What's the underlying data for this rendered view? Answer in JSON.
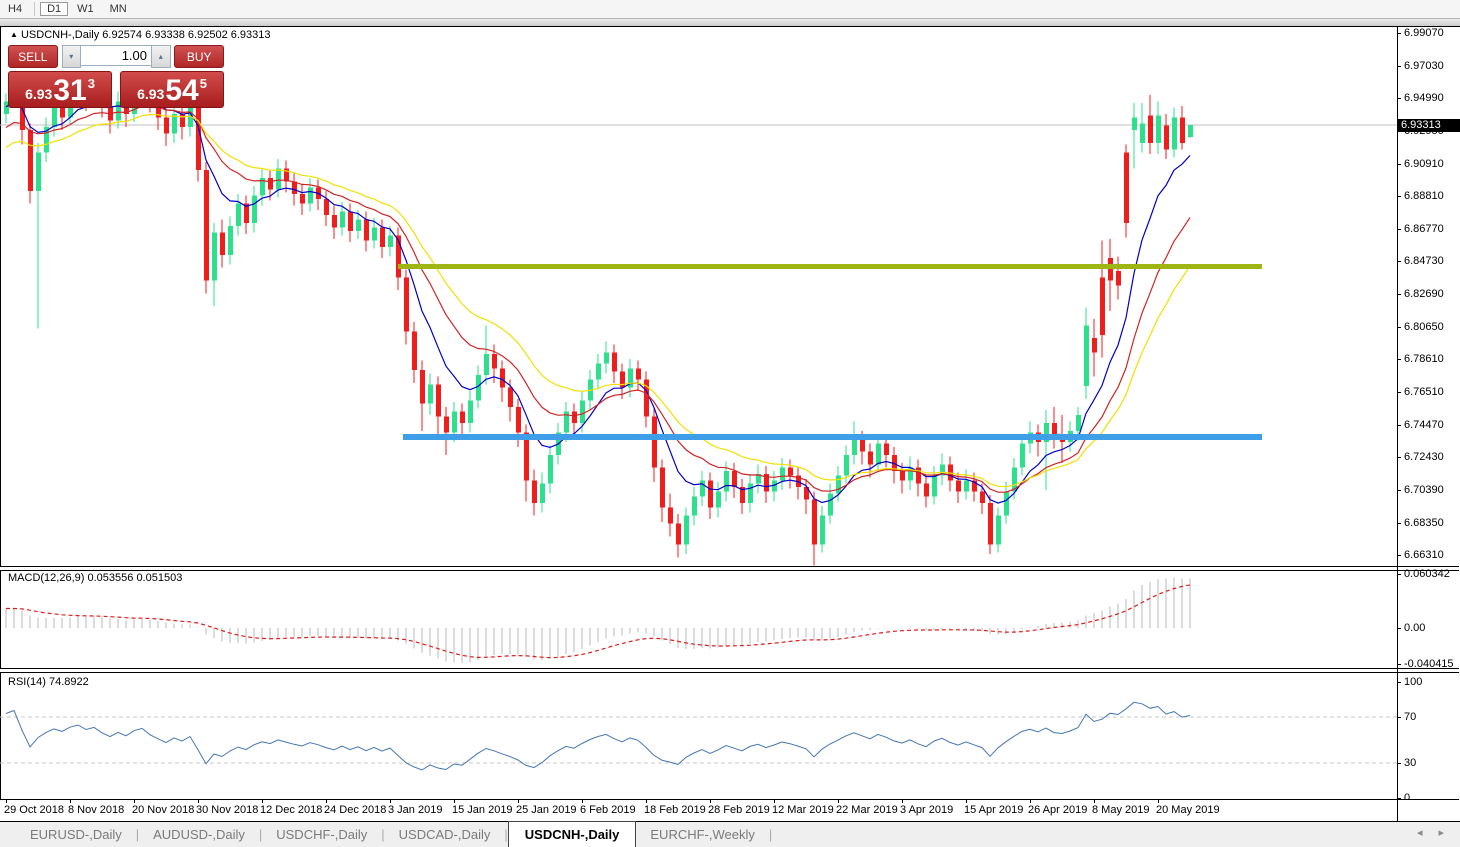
{
  "toolbar": {
    "timeframes": [
      "H4",
      "D1",
      "W1",
      "MN"
    ],
    "active_timeframe": "D1"
  },
  "chart_header": {
    "collapse_icon": "▲",
    "symbol_title": "USDCNH-,Daily",
    "ohlc_text": "6.92574 6.93338 6.92502 6.93313"
  },
  "trade_panel": {
    "sell_label": "SELL",
    "buy_label": "BUY",
    "volume_value": "1.00",
    "spin_down": "▾",
    "spin_up": "▴",
    "sell_price": {
      "prefix": "6.93",
      "big": "31",
      "sup": "3"
    },
    "buy_price": {
      "prefix": "6.93",
      "big": "54",
      "sup": "5"
    }
  },
  "price_axis": {
    "labels": [
      "6.99070",
      "6.97030",
      "6.94990",
      "6.92950",
      "6.90910",
      "6.88810",
      "6.86770",
      "6.84730",
      "6.82690",
      "6.80650",
      "6.78610",
      "6.76510",
      "6.74470",
      "6.72430",
      "6.70390",
      "6.68350",
      "6.66310"
    ],
    "current_price": "6.93313"
  },
  "macd_panel": {
    "label": "MACD(12,26,9)",
    "value_main": "0.053556",
    "value_signal": "0.051503",
    "axis_labels": [
      "0.060342",
      "0.00",
      "-0.040415"
    ]
  },
  "rsi_panel": {
    "label": "RSI(14)",
    "value": "74.8922",
    "axis_labels": [
      "100",
      "70",
      "30",
      "0"
    ]
  },
  "date_axis": {
    "labels": [
      "29 Oct 2018",
      "8 Nov 2018",
      "20 Nov 2018",
      "30 Nov 2018",
      "12 Dec 2018",
      "24 Dec 2018",
      "3 Jan 2019",
      "15 Jan 2019",
      "25 Jan 2019",
      "6 Feb 2019",
      "18 Feb 2019",
      "28 Feb 2019",
      "12 Mar 2019",
      "22 Mar 2019",
      "3 Apr 2019",
      "15 Apr 2019",
      "26 Apr 2019",
      "8 May 2019",
      "20 May 2019"
    ]
  },
  "tabs": {
    "items": [
      {
        "label": "EURUSD-,Daily",
        "active": false
      },
      {
        "label": "AUDUSD-,Daily",
        "active": false
      },
      {
        "label": "USDCHF-,Daily",
        "active": false
      },
      {
        "label": "USDCAD-,Daily",
        "active": false
      },
      {
        "label": "USDCNH-,Daily",
        "active": true
      },
      {
        "label": "EURCHF-,Weekly",
        "active": false
      }
    ],
    "scroll_left": "◂",
    "scroll_right": "▸"
  },
  "colors": {
    "bull": "#2de08e",
    "bear": "#f01d1d",
    "ma_fast_blue": "#0000cc",
    "ma_mid_red": "#d02424",
    "ma_slow_yellow": "#f2e000",
    "hline_olive": "#9fb514",
    "hline_blue": "#3f9ee8",
    "macd_hist": "#b8b8b8",
    "macd_signal": "#e01d1d",
    "rsi_line": "#4577b5",
    "current_price_line": "#c0c0c0",
    "price_tag_bg": "#000000"
  },
  "chart_data": {
    "type": "candlestick",
    "symbol": "USDCNH",
    "timeframe": "Daily",
    "title": "USDCNH-,Daily",
    "last_candle_ohlc": {
      "open": 6.92574,
      "high": 6.93338,
      "low": 6.92502,
      "close": 6.93313
    },
    "price_axis_range": {
      "top": 6.9907,
      "bottom": 6.6631
    },
    "x_tick_labels": [
      "29 Oct 2018",
      "8 Nov 2018",
      "20 Nov 2018",
      "30 Nov 2018",
      "12 Dec 2018",
      "24 Dec 2018",
      "3 Jan 2019",
      "15 Jan 2019",
      "25 Jan 2019",
      "6 Feb 2019",
      "18 Feb 2019",
      "28 Feb 2019",
      "12 Mar 2019",
      "22 Mar 2019",
      "3 Apr 2019",
      "15 Apr 2019",
      "26 Apr 2019",
      "8 May 2019",
      "20 May 2019"
    ],
    "candles_ohlc": [
      [
        6.94,
        6.953,
        6.934,
        6.948
      ],
      [
        6.948,
        6.963,
        6.944,
        6.958
      ],
      [
        6.958,
        6.962,
        6.921,
        6.93
      ],
      [
        6.93,
        6.934,
        6.884,
        6.892
      ],
      [
        6.892,
        6.922,
        6.806,
        6.916
      ],
      [
        6.916,
        6.938,
        6.91,
        6.932
      ],
      [
        6.932,
        6.95,
        6.926,
        6.944
      ],
      [
        6.944,
        6.951,
        6.93,
        6.938
      ],
      [
        6.938,
        6.958,
        6.933,
        6.952
      ],
      [
        6.952,
        6.965,
        6.947,
        6.96
      ],
      [
        6.96,
        6.965,
        6.942,
        6.95
      ],
      [
        6.95,
        6.962,
        6.944,
        6.957
      ],
      [
        6.957,
        6.961,
        6.938,
        6.945
      ],
      [
        6.945,
        6.95,
        6.928,
        6.936
      ],
      [
        6.936,
        6.954,
        6.931,
        6.948
      ],
      [
        6.948,
        6.953,
        6.932,
        6.94
      ],
      [
        6.94,
        6.96,
        6.935,
        6.955
      ],
      [
        6.955,
        6.966,
        6.949,
        6.962
      ],
      [
        6.962,
        6.966,
        6.941,
        6.948
      ],
      [
        6.948,
        6.953,
        6.93,
        6.938
      ],
      [
        6.938,
        6.944,
        6.92,
        6.928
      ],
      [
        6.928,
        6.946,
        6.922,
        6.94
      ],
      [
        6.94,
        6.945,
        6.924,
        6.932
      ],
      [
        6.932,
        6.95,
        6.926,
        6.944
      ],
      [
        6.944,
        6.948,
        6.898,
        6.905
      ],
      [
        6.905,
        6.91,
        6.828,
        6.836
      ],
      [
        6.836,
        6.872,
        6.82,
        6.866
      ],
      [
        6.866,
        6.874,
        6.844,
        6.852
      ],
      [
        6.852,
        6.876,
        6.846,
        6.87
      ],
      [
        6.87,
        6.89,
        6.864,
        6.884
      ],
      [
        6.884,
        6.889,
        6.865,
        6.872
      ],
      [
        6.872,
        6.895,
        6.866,
        6.889
      ],
      [
        6.889,
        6.906,
        6.883,
        6.9
      ],
      [
        6.9,
        6.905,
        6.886,
        6.893
      ],
      [
        6.893,
        6.912,
        6.888,
        6.906
      ],
      [
        6.906,
        6.911,
        6.891,
        6.898
      ],
      [
        6.898,
        6.903,
        6.883,
        6.89
      ],
      [
        6.89,
        6.896,
        6.877,
        6.884
      ],
      [
        6.884,
        6.9,
        6.879,
        6.894
      ],
      [
        6.894,
        6.899,
        6.88,
        6.887
      ],
      [
        6.887,
        6.892,
        6.87,
        6.877
      ],
      [
        6.877,
        6.883,
        6.862,
        6.869
      ],
      [
        6.869,
        6.885,
        6.864,
        6.879
      ],
      [
        6.879,
        6.884,
        6.86,
        6.867
      ],
      [
        6.867,
        6.88,
        6.862,
        6.874
      ],
      [
        6.874,
        6.879,
        6.854,
        6.861
      ],
      [
        6.861,
        6.875,
        6.856,
        6.869
      ],
      [
        6.869,
        6.874,
        6.85,
        6.857
      ],
      [
        6.857,
        6.87,
        6.851,
        6.864
      ],
      [
        6.864,
        6.869,
        6.83,
        6.838
      ],
      [
        6.838,
        6.843,
        6.796,
        6.804
      ],
      [
        6.804,
        6.81,
        6.772,
        6.78
      ],
      [
        6.78,
        6.786,
        6.742,
        6.759
      ],
      [
        6.759,
        6.778,
        6.752,
        6.771
      ],
      [
        6.771,
        6.776,
        6.738,
        6.751
      ],
      [
        6.751,
        6.757,
        6.727,
        6.741
      ],
      [
        6.741,
        6.76,
        6.735,
        6.754
      ],
      [
        6.754,
        6.759,
        6.738,
        6.747
      ],
      [
        6.747,
        6.767,
        6.741,
        6.761
      ],
      [
        6.761,
        6.783,
        6.756,
        6.777
      ],
      [
        6.777,
        6.808,
        6.771,
        6.79
      ],
      [
        6.79,
        6.796,
        6.772,
        6.781
      ],
      [
        6.781,
        6.786,
        6.76,
        6.769
      ],
      [
        6.769,
        6.774,
        6.748,
        6.757
      ],
      [
        6.757,
        6.762,
        6.732,
        6.741
      ],
      [
        6.741,
        6.746,
        6.698,
        6.711
      ],
      [
        6.711,
        6.718,
        6.689,
        6.697
      ],
      [
        6.697,
        6.716,
        6.691,
        6.709
      ],
      [
        6.709,
        6.733,
        6.703,
        6.727
      ],
      [
        6.727,
        6.747,
        6.721,
        6.741
      ],
      [
        6.741,
        6.76,
        6.735,
        6.754
      ],
      [
        6.754,
        6.759,
        6.74,
        6.747
      ],
      [
        6.747,
        6.767,
        6.741,
        6.761
      ],
      [
        6.761,
        6.78,
        6.755,
        6.774
      ],
      [
        6.774,
        6.79,
        6.768,
        6.784
      ],
      [
        6.784,
        6.798,
        6.778,
        6.791
      ],
      [
        6.791,
        6.796,
        6.772,
        6.779
      ],
      [
        6.779,
        6.784,
        6.762,
        6.769
      ],
      [
        6.769,
        6.787,
        6.763,
        6.781
      ],
      [
        6.781,
        6.786,
        6.767,
        6.774
      ],
      [
        6.774,
        6.779,
        6.744,
        6.751
      ],
      [
        6.751,
        6.756,
        6.71,
        6.719
      ],
      [
        6.719,
        6.724,
        6.685,
        6.694
      ],
      [
        6.694,
        6.703,
        6.676,
        6.684
      ],
      [
        6.684,
        6.69,
        6.663,
        6.671
      ],
      [
        6.671,
        6.694,
        6.665,
        6.689
      ],
      [
        6.689,
        6.707,
        6.683,
        6.701
      ],
      [
        6.701,
        6.717,
        6.695,
        6.711
      ],
      [
        6.711,
        6.716,
        6.687,
        6.694
      ],
      [
        6.694,
        6.71,
        6.688,
        6.704
      ],
      [
        6.704,
        6.723,
        6.698,
        6.717
      ],
      [
        6.717,
        6.722,
        6.7,
        6.707
      ],
      [
        6.707,
        6.712,
        6.69,
        6.697
      ],
      [
        6.697,
        6.715,
        6.691,
        6.709
      ],
      [
        6.709,
        6.721,
        6.703,
        6.715
      ],
      [
        6.715,
        6.72,
        6.697,
        6.704
      ],
      [
        6.704,
        6.717,
        6.698,
        6.711
      ],
      [
        6.711,
        6.725,
        6.705,
        6.719
      ],
      [
        6.719,
        6.724,
        6.706,
        6.714
      ],
      [
        6.714,
        6.719,
        6.699,
        6.707
      ],
      [
        6.707,
        6.712,
        6.69,
        6.699
      ],
      [
        6.699,
        6.704,
        6.658,
        6.671
      ],
      [
        6.671,
        6.695,
        6.666,
        6.689
      ],
      [
        6.689,
        6.709,
        6.684,
        6.703
      ],
      [
        6.703,
        6.72,
        6.698,
        6.714
      ],
      [
        6.714,
        6.733,
        6.709,
        6.727
      ],
      [
        6.727,
        6.748,
        6.721,
        6.737
      ],
      [
        6.737,
        6.742,
        6.721,
        6.729
      ],
      [
        6.729,
        6.734,
        6.713,
        6.721
      ],
      [
        6.721,
        6.74,
        6.716,
        6.734
      ],
      [
        6.734,
        6.739,
        6.719,
        6.727
      ],
      [
        6.727,
        6.732,
        6.709,
        6.717
      ],
      [
        6.717,
        6.722,
        6.703,
        6.711
      ],
      [
        6.711,
        6.726,
        6.705,
        6.719
      ],
      [
        6.719,
        6.724,
        6.701,
        6.709
      ],
      [
        6.709,
        6.714,
        6.694,
        6.701
      ],
      [
        6.701,
        6.72,
        6.696,
        6.714
      ],
      [
        6.714,
        6.728,
        6.708,
        6.721
      ],
      [
        6.721,
        6.726,
        6.704,
        6.711
      ],
      [
        6.711,
        6.716,
        6.697,
        6.704
      ],
      [
        6.704,
        6.718,
        6.699,
        6.711
      ],
      [
        6.711,
        6.716,
        6.698,
        6.704
      ],
      [
        6.704,
        6.709,
        6.69,
        6.697
      ],
      [
        6.697,
        6.702,
        6.665,
        6.671
      ],
      [
        6.671,
        6.694,
        6.666,
        6.689
      ],
      [
        6.689,
        6.71,
        6.684,
        6.704
      ],
      [
        6.704,
        6.725,
        6.699,
        6.719
      ],
      [
        6.719,
        6.74,
        6.714,
        6.734
      ],
      [
        6.734,
        6.748,
        6.728,
        6.741
      ],
      [
        6.741,
        6.746,
        6.726,
        6.735
      ],
      [
        6.735,
        6.755,
        6.705,
        6.747
      ],
      [
        6.747,
        6.757,
        6.731,
        6.737
      ],
      [
        6.737,
        6.752,
        6.722,
        6.735
      ],
      [
        6.735,
        6.748,
        6.729,
        6.742
      ],
      [
        6.742,
        6.757,
        6.736,
        6.752
      ],
      [
        6.77,
        6.819,
        6.762,
        6.808
      ],
      [
        6.8,
        6.812,
        6.776,
        6.791
      ],
      [
        6.838,
        6.861,
        6.788,
        6.802
      ],
      [
        6.85,
        6.862,
        6.817,
        6.836
      ],
      [
        6.842,
        6.851,
        6.824,
        6.833
      ],
      [
        6.916,
        6.921,
        6.863,
        6.872
      ],
      [
        6.93,
        6.947,
        6.906,
        6.938
      ],
      [
        6.922,
        6.947,
        6.916,
        6.934
      ],
      [
        6.939,
        6.952,
        6.915,
        6.922
      ],
      [
        6.922,
        6.948,
        6.915,
        6.939
      ],
      [
        6.933,
        6.94,
        6.912,
        6.918
      ],
      [
        6.918,
        6.944,
        6.913,
        6.938
      ],
      [
        6.938,
        6.945,
        6.918,
        6.922
      ],
      [
        6.9257,
        6.9334,
        6.925,
        6.9331
      ]
    ],
    "prehistory_closes": [
      6.845,
      6.852,
      6.858,
      6.865,
      6.872,
      6.878,
      6.885,
      6.872,
      6.88,
      6.89,
      6.898,
      6.905,
      6.912,
      6.905,
      6.915,
      6.922,
      6.93,
      6.925,
      6.935,
      6.942,
      6.95,
      6.944,
      6.952,
      6.958,
      6.95,
      6.944
    ],
    "moving_averages": [
      {
        "name": "fast",
        "period": 8,
        "color": "#0000cc"
      },
      {
        "name": "mid",
        "period": 16,
        "color": "#d02424"
      },
      {
        "name": "slow",
        "period": 24,
        "color": "#f2e000"
      }
    ],
    "horizontal_lines": [
      {
        "price": 6.845,
        "color": "#9fb514",
        "thickness": 5
      },
      {
        "price": 6.738,
        "color": "#3f9ee8",
        "thickness": 6
      }
    ],
    "macd": {
      "params": [
        12,
        26,
        9
      ],
      "last_main": 0.053556,
      "last_signal": 0.051503,
      "axis_max": 0.060342,
      "axis_min": -0.040415
    },
    "rsi": {
      "period": 14,
      "last_value": 74.8922,
      "levels": [
        70,
        30
      ],
      "axis": [
        100,
        70,
        30,
        0
      ]
    }
  }
}
